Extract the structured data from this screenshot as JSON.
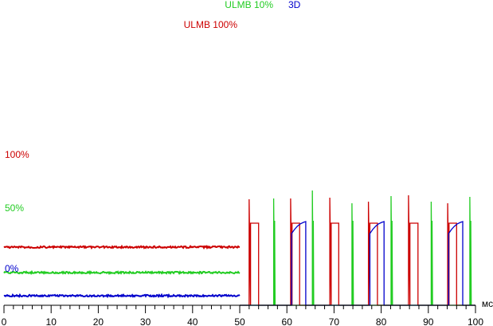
{
  "chart_data": {
    "type": "line",
    "xlim": [
      0,
      100
    ],
    "x_unit": "мс",
    "x_ticks": [
      "0",
      "10",
      "20",
      "30",
      "40",
      "50",
      "60",
      "70",
      "80",
      "90",
      "100"
    ],
    "grid": false,
    "series": [
      {
        "name": "100%",
        "color": "#cc0000",
        "level_percent": 100,
        "points": [
          [
            0,
            73
          ],
          [
            50,
            73
          ]
        ]
      },
      {
        "name": "50%",
        "color": "#22cc22",
        "level_percent": 50,
        "points": [
          [
            0,
            41
          ],
          [
            50,
            41
          ]
        ]
      },
      {
        "name": "0%",
        "color": "#0000cc",
        "level_percent": 0,
        "points": [
          [
            0,
            12
          ],
          [
            50,
            12
          ]
        ]
      },
      {
        "name": "ULMB 100%",
        "color": "#cc0000",
        "points": [
          [
            50,
            0
          ],
          [
            52.0,
            0
          ],
          [
            52.0,
            133
          ],
          [
            52.3,
            0
          ],
          [
            52.3,
            103
          ],
          [
            54.0,
            103
          ],
          [
            54.0,
            0
          ],
          [
            60.8,
            0
          ],
          [
            60.8,
            134
          ],
          [
            61.1,
            0
          ],
          [
            61.1,
            103
          ],
          [
            62.7,
            103
          ],
          [
            62.7,
            0
          ],
          [
            69.1,
            0
          ],
          [
            69.1,
            135
          ],
          [
            69.4,
            0
          ],
          [
            69.4,
            103
          ],
          [
            71.0,
            103
          ],
          [
            71.0,
            0
          ],
          [
            77.3,
            0
          ],
          [
            77.3,
            130
          ],
          [
            77.6,
            0
          ],
          [
            77.6,
            103
          ],
          [
            79.2,
            103
          ],
          [
            79.2,
            0
          ],
          [
            85.8,
            0
          ],
          [
            85.8,
            138
          ],
          [
            86.1,
            0
          ],
          [
            86.1,
            103
          ],
          [
            87.8,
            103
          ],
          [
            87.8,
            0
          ],
          [
            94.1,
            0
          ],
          [
            94.1,
            128
          ],
          [
            94.4,
            0
          ],
          [
            94.4,
            103
          ],
          [
            96.0,
            103
          ],
          [
            96.0,
            0
          ],
          [
            100,
            0
          ]
        ]
      },
      {
        "name": "ULMB 10%",
        "color": "#22cc22",
        "points": [
          [
            50,
            0
          ],
          [
            57.2,
            0
          ],
          [
            57.2,
            134
          ],
          [
            57.4,
            0
          ],
          [
            57.4,
            106
          ],
          [
            57.5,
            0
          ],
          [
            65.4,
            0
          ],
          [
            65.4,
            144
          ],
          [
            65.6,
            0
          ],
          [
            65.6,
            106
          ],
          [
            65.7,
            0
          ],
          [
            73.8,
            0
          ],
          [
            73.8,
            128
          ],
          [
            74.0,
            0
          ],
          [
            74.0,
            106
          ],
          [
            74.1,
            0
          ],
          [
            82.1,
            0
          ],
          [
            82.1,
            137
          ],
          [
            82.3,
            0
          ],
          [
            82.3,
            106
          ],
          [
            82.4,
            0
          ],
          [
            90.6,
            0
          ],
          [
            90.6,
            130
          ],
          [
            90.8,
            0
          ],
          [
            90.8,
            106
          ],
          [
            90.9,
            0
          ],
          [
            98.8,
            0
          ],
          [
            98.8,
            136
          ],
          [
            99.0,
            0
          ],
          [
            99.0,
            106
          ],
          [
            99.1,
            0
          ],
          [
            100,
            0
          ]
        ]
      },
      {
        "name": "3D",
        "color": "#0000cc",
        "points": [
          [
            50,
            0
          ],
          [
            61.0,
            0
          ],
          [
            61.0,
            90
          ],
          [
            61.6,
            95
          ],
          [
            62.2,
            99
          ],
          [
            62.8,
            102
          ],
          [
            63.5,
            104
          ],
          [
            64.0,
            105
          ],
          [
            64.0,
            0
          ],
          [
            77.6,
            0
          ],
          [
            77.6,
            90
          ],
          [
            78.2,
            95
          ],
          [
            78.8,
            99
          ],
          [
            79.4,
            102
          ],
          [
            80.1,
            104
          ],
          [
            80.6,
            105
          ],
          [
            80.6,
            0
          ],
          [
            94.3,
            0
          ],
          [
            94.3,
            90
          ],
          [
            94.9,
            95
          ],
          [
            95.5,
            99
          ],
          [
            96.1,
            102
          ],
          [
            96.8,
            104
          ],
          [
            97.3,
            105
          ],
          [
            97.3,
            0
          ],
          [
            100,
            0
          ]
        ]
      }
    ]
  }
}
